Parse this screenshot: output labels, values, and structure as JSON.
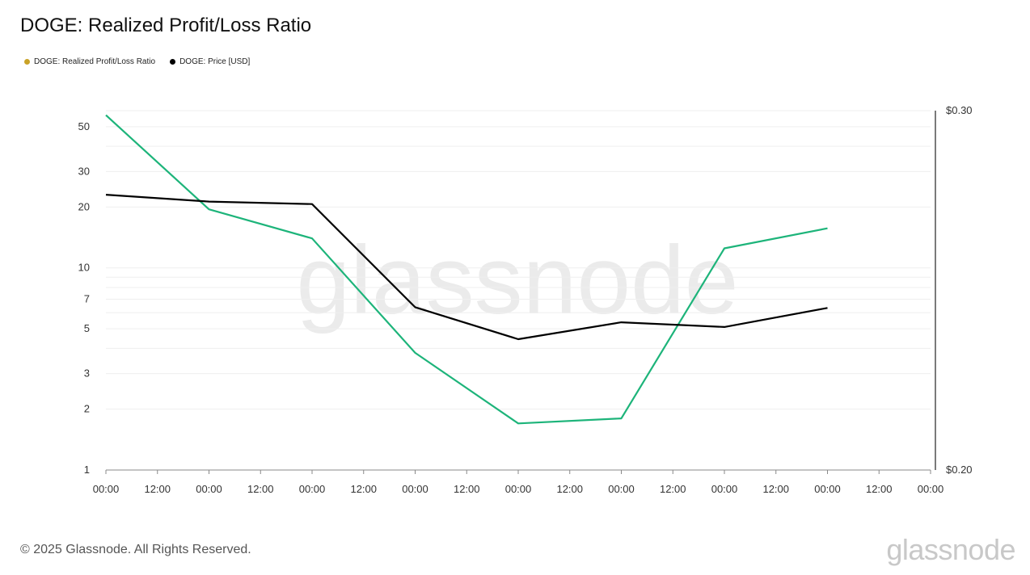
{
  "title": "DOGE: Realized Profit/Loss Ratio",
  "legend": [
    {
      "label": "DOGE: Realized Profit/Loss Ratio",
      "color": "#c9a227"
    },
    {
      "label": "DOGE: Price [USD]",
      "color": "#000000"
    }
  ],
  "footer": "© 2025 Glassnode. All Rights Reserved.",
  "brand": "glassnode",
  "watermark": "glassnode",
  "chart_data": {
    "type": "line",
    "x_tick_labels": [
      "00:00",
      "12:00",
      "00:00",
      "12:00",
      "00:00",
      "12:00",
      "00:00",
      "12:00",
      "00:00",
      "12:00",
      "00:00",
      "12:00",
      "00:00",
      "12:00",
      "00:00",
      "12:00",
      "00:00"
    ],
    "left_axis": {
      "scale": "log",
      "ylim": [
        1,
        60
      ],
      "tick_labels": [
        "1",
        "2",
        "3",
        "5",
        "7",
        "10",
        "20",
        "30",
        "50"
      ],
      "tick_values": [
        1,
        2,
        3,
        5,
        7,
        10,
        20,
        30,
        50
      ]
    },
    "right_axis": {
      "ylim": [
        0.2,
        0.3
      ],
      "tick_labels": [
        "$0.20",
        "$0.30"
      ]
    },
    "grid": true,
    "legend_position": "top-left",
    "series": [
      {
        "name": "DOGE: Realized Profit/Loss Ratio",
        "axis": "left",
        "color": "#1db47a",
        "values": [
          57,
          19.5,
          14,
          3.8,
          1.7,
          1.8,
          12.5,
          15.7
        ]
      },
      {
        "name": "DOGE: Price [USD]",
        "axis": "right",
        "color": "#000000",
        "values": [
          0.2766,
          0.2747,
          0.274,
          0.2453,
          0.2364,
          0.2411,
          0.2398,
          0.2451
        ]
      }
    ]
  }
}
